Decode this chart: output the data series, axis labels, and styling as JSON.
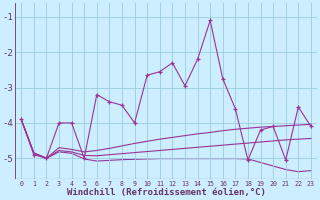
{
  "x": [
    0,
    1,
    2,
    3,
    4,
    5,
    6,
    7,
    8,
    9,
    10,
    11,
    12,
    13,
    14,
    15,
    16,
    17,
    18,
    19,
    20,
    21,
    22,
    23
  ],
  "line_main": [
    -3.9,
    -4.9,
    -5.0,
    -4.0,
    -4.0,
    -5.0,
    -3.2,
    -3.4,
    -3.5,
    -4.0,
    -2.65,
    -2.55,
    -2.3,
    -2.95,
    -2.2,
    -1.1,
    -2.75,
    -3.6,
    -5.05,
    -4.2,
    -4.1,
    -5.05,
    -3.55,
    -4.1
  ],
  "line_smooth1": [
    -3.9,
    -4.85,
    -5.0,
    -4.7,
    -4.75,
    -4.82,
    -4.78,
    -4.72,
    -4.65,
    -4.58,
    -4.52,
    -4.46,
    -4.41,
    -4.36,
    -4.31,
    -4.27,
    -4.22,
    -4.18,
    -4.15,
    -4.12,
    -4.1,
    -4.08,
    -4.06,
    -4.04
  ],
  "line_smooth2": [
    -3.9,
    -4.85,
    -5.0,
    -4.78,
    -4.82,
    -4.92,
    -4.93,
    -4.9,
    -4.87,
    -4.84,
    -4.81,
    -4.78,
    -4.75,
    -4.72,
    -4.69,
    -4.66,
    -4.63,
    -4.6,
    -4.57,
    -4.54,
    -4.51,
    -4.48,
    -4.46,
    -4.44
  ],
  "line_smooth3": [
    -3.9,
    -4.85,
    -5.0,
    -4.82,
    -4.86,
    -5.02,
    -5.08,
    -5.06,
    -5.04,
    -5.03,
    -5.02,
    -5.01,
    -5.01,
    -5.01,
    -5.01,
    -5.01,
    -5.01,
    -5.01,
    -5.02,
    -5.12,
    -5.22,
    -5.32,
    -5.38,
    -5.35
  ],
  "bg_color": "#cceeff",
  "line_color": "#993399",
  "grid_color": "#99ccdd",
  "axis_color": "#663366",
  "xlabel": "Windchill (Refroidissement éolien,°C)",
  "ylim": [
    -5.6,
    -0.6
  ],
  "xlim": [
    -0.5,
    23.5
  ],
  "yticks": [
    -5,
    -4,
    -3,
    -2,
    -1
  ],
  "xticks": [
    0,
    1,
    2,
    3,
    4,
    5,
    6,
    7,
    8,
    9,
    10,
    11,
    12,
    13,
    14,
    15,
    16,
    17,
    18,
    19,
    20,
    21,
    22,
    23
  ]
}
